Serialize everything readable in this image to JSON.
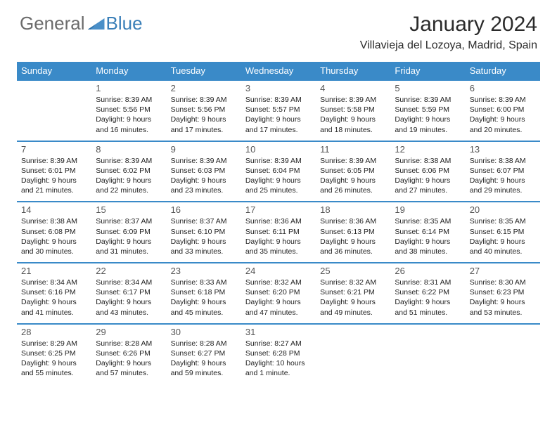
{
  "logo": {
    "text1": "General",
    "text2": "Blue"
  },
  "title": "January 2024",
  "location": "Villavieja del Lozoya, Madrid, Spain",
  "day_headers": [
    "Sunday",
    "Monday",
    "Tuesday",
    "Wednesday",
    "Thursday",
    "Friday",
    "Saturday"
  ],
  "header_bg": "#3a8ac8",
  "header_fg": "#ffffff",
  "weeks": [
    [
      null,
      {
        "n": "1",
        "sr": "Sunrise: 8:39 AM",
        "ss": "Sunset: 5:56 PM",
        "d1": "Daylight: 9 hours",
        "d2": "and 16 minutes."
      },
      {
        "n": "2",
        "sr": "Sunrise: 8:39 AM",
        "ss": "Sunset: 5:56 PM",
        "d1": "Daylight: 9 hours",
        "d2": "and 17 minutes."
      },
      {
        "n": "3",
        "sr": "Sunrise: 8:39 AM",
        "ss": "Sunset: 5:57 PM",
        "d1": "Daylight: 9 hours",
        "d2": "and 17 minutes."
      },
      {
        "n": "4",
        "sr": "Sunrise: 8:39 AM",
        "ss": "Sunset: 5:58 PM",
        "d1": "Daylight: 9 hours",
        "d2": "and 18 minutes."
      },
      {
        "n": "5",
        "sr": "Sunrise: 8:39 AM",
        "ss": "Sunset: 5:59 PM",
        "d1": "Daylight: 9 hours",
        "d2": "and 19 minutes."
      },
      {
        "n": "6",
        "sr": "Sunrise: 8:39 AM",
        "ss": "Sunset: 6:00 PM",
        "d1": "Daylight: 9 hours",
        "d2": "and 20 minutes."
      }
    ],
    [
      {
        "n": "7",
        "sr": "Sunrise: 8:39 AM",
        "ss": "Sunset: 6:01 PM",
        "d1": "Daylight: 9 hours",
        "d2": "and 21 minutes."
      },
      {
        "n": "8",
        "sr": "Sunrise: 8:39 AM",
        "ss": "Sunset: 6:02 PM",
        "d1": "Daylight: 9 hours",
        "d2": "and 22 minutes."
      },
      {
        "n": "9",
        "sr": "Sunrise: 8:39 AM",
        "ss": "Sunset: 6:03 PM",
        "d1": "Daylight: 9 hours",
        "d2": "and 23 minutes."
      },
      {
        "n": "10",
        "sr": "Sunrise: 8:39 AM",
        "ss": "Sunset: 6:04 PM",
        "d1": "Daylight: 9 hours",
        "d2": "and 25 minutes."
      },
      {
        "n": "11",
        "sr": "Sunrise: 8:39 AM",
        "ss": "Sunset: 6:05 PM",
        "d1": "Daylight: 9 hours",
        "d2": "and 26 minutes."
      },
      {
        "n": "12",
        "sr": "Sunrise: 8:38 AM",
        "ss": "Sunset: 6:06 PM",
        "d1": "Daylight: 9 hours",
        "d2": "and 27 minutes."
      },
      {
        "n": "13",
        "sr": "Sunrise: 8:38 AM",
        "ss": "Sunset: 6:07 PM",
        "d1": "Daylight: 9 hours",
        "d2": "and 29 minutes."
      }
    ],
    [
      {
        "n": "14",
        "sr": "Sunrise: 8:38 AM",
        "ss": "Sunset: 6:08 PM",
        "d1": "Daylight: 9 hours",
        "d2": "and 30 minutes."
      },
      {
        "n": "15",
        "sr": "Sunrise: 8:37 AM",
        "ss": "Sunset: 6:09 PM",
        "d1": "Daylight: 9 hours",
        "d2": "and 31 minutes."
      },
      {
        "n": "16",
        "sr": "Sunrise: 8:37 AM",
        "ss": "Sunset: 6:10 PM",
        "d1": "Daylight: 9 hours",
        "d2": "and 33 minutes."
      },
      {
        "n": "17",
        "sr": "Sunrise: 8:36 AM",
        "ss": "Sunset: 6:11 PM",
        "d1": "Daylight: 9 hours",
        "d2": "and 35 minutes."
      },
      {
        "n": "18",
        "sr": "Sunrise: 8:36 AM",
        "ss": "Sunset: 6:13 PM",
        "d1": "Daylight: 9 hours",
        "d2": "and 36 minutes."
      },
      {
        "n": "19",
        "sr": "Sunrise: 8:35 AM",
        "ss": "Sunset: 6:14 PM",
        "d1": "Daylight: 9 hours",
        "d2": "and 38 minutes."
      },
      {
        "n": "20",
        "sr": "Sunrise: 8:35 AM",
        "ss": "Sunset: 6:15 PM",
        "d1": "Daylight: 9 hours",
        "d2": "and 40 minutes."
      }
    ],
    [
      {
        "n": "21",
        "sr": "Sunrise: 8:34 AM",
        "ss": "Sunset: 6:16 PM",
        "d1": "Daylight: 9 hours",
        "d2": "and 41 minutes."
      },
      {
        "n": "22",
        "sr": "Sunrise: 8:34 AM",
        "ss": "Sunset: 6:17 PM",
        "d1": "Daylight: 9 hours",
        "d2": "and 43 minutes."
      },
      {
        "n": "23",
        "sr": "Sunrise: 8:33 AM",
        "ss": "Sunset: 6:18 PM",
        "d1": "Daylight: 9 hours",
        "d2": "and 45 minutes."
      },
      {
        "n": "24",
        "sr": "Sunrise: 8:32 AM",
        "ss": "Sunset: 6:20 PM",
        "d1": "Daylight: 9 hours",
        "d2": "and 47 minutes."
      },
      {
        "n": "25",
        "sr": "Sunrise: 8:32 AM",
        "ss": "Sunset: 6:21 PM",
        "d1": "Daylight: 9 hours",
        "d2": "and 49 minutes."
      },
      {
        "n": "26",
        "sr": "Sunrise: 8:31 AM",
        "ss": "Sunset: 6:22 PM",
        "d1": "Daylight: 9 hours",
        "d2": "and 51 minutes."
      },
      {
        "n": "27",
        "sr": "Sunrise: 8:30 AM",
        "ss": "Sunset: 6:23 PM",
        "d1": "Daylight: 9 hours",
        "d2": "and 53 minutes."
      }
    ],
    [
      {
        "n": "28",
        "sr": "Sunrise: 8:29 AM",
        "ss": "Sunset: 6:25 PM",
        "d1": "Daylight: 9 hours",
        "d2": "and 55 minutes."
      },
      {
        "n": "29",
        "sr": "Sunrise: 8:28 AM",
        "ss": "Sunset: 6:26 PM",
        "d1": "Daylight: 9 hours",
        "d2": "and 57 minutes."
      },
      {
        "n": "30",
        "sr": "Sunrise: 8:28 AM",
        "ss": "Sunset: 6:27 PM",
        "d1": "Daylight: 9 hours",
        "d2": "and 59 minutes."
      },
      {
        "n": "31",
        "sr": "Sunrise: 8:27 AM",
        "ss": "Sunset: 6:28 PM",
        "d1": "Daylight: 10 hours",
        "d2": "and 1 minute."
      },
      null,
      null,
      null
    ]
  ]
}
